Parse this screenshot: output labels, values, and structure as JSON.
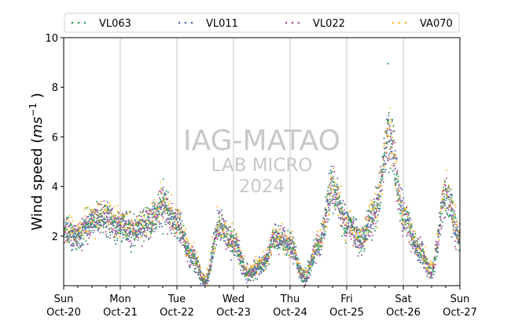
{
  "chart_data": {
    "type": "scatter",
    "ylabel": "Wind speed (ms⁻¹ )",
    "ylabel_main": "Wind speed (",
    "ylabel_unit": "ms",
    "ylabel_exp": "−1",
    "ylabel_close": " )",
    "ylim": [
      0,
      10
    ],
    "yticks": [
      2,
      4,
      6,
      8,
      10
    ],
    "x_range_days": [
      0,
      7
    ],
    "x_start": "2024-10-20",
    "x_end": "2024-10-27",
    "xticks": [
      {
        "day": "Sun",
        "date": "Oct-20"
      },
      {
        "day": "Mon",
        "date": "Oct-21"
      },
      {
        "day": "Tue",
        "date": "Oct-22"
      },
      {
        "day": "Wed",
        "date": "Oct-23"
      },
      {
        "day": "Thu",
        "date": "Oct-24"
      },
      {
        "day": "Fri",
        "date": "Oct-25"
      },
      {
        "day": "Sat",
        "date": "Oct-26"
      },
      {
        "day": "Sun",
        "date": "Oct-27"
      }
    ],
    "grid": "vertical at day boundaries",
    "legend_position": "top",
    "series": [
      {
        "name": "VL063",
        "color": "#2ca05a"
      },
      {
        "name": "VL011",
        "color": "#4a6fb5"
      },
      {
        "name": "VL022",
        "color": "#b0509a"
      },
      {
        "name": "VA070",
        "color": "#f5b92e"
      }
    ],
    "envelope": [
      [
        "2024-10-20 00:00",
        2.2
      ],
      [
        "2024-10-20 06:00",
        2.0
      ],
      [
        "2024-10-20 12:00",
        2.6
      ],
      [
        "2024-10-20 18:00",
        2.7
      ],
      [
        "2024-10-21 00:00",
        2.4
      ],
      [
        "2024-10-21 06:00",
        2.2
      ],
      [
        "2024-10-21 12:00",
        2.5
      ],
      [
        "2024-10-21 18:00",
        3.2
      ],
      [
        "2024-10-22 00:00",
        2.5
      ],
      [
        "2024-10-22 06:00",
        1.2
      ],
      [
        "2024-10-22 12:00",
        0.15
      ],
      [
        "2024-10-22 18:00",
        2.4
      ],
      [
        "2024-10-23 00:00",
        1.7
      ],
      [
        "2024-10-23 06:00",
        0.5
      ],
      [
        "2024-10-23 12:00",
        0.8
      ],
      [
        "2024-10-23 18:00",
        1.9
      ],
      [
        "2024-10-24 00:00",
        1.6
      ],
      [
        "2024-10-24 06:00",
        0.3
      ],
      [
        "2024-10-24 12:00",
        1.6
      ],
      [
        "2024-10-24 18:00",
        3.9
      ],
      [
        "2024-10-25 00:00",
        2.5
      ],
      [
        "2024-10-25 06:00",
        1.8
      ],
      [
        "2024-10-25 12:00",
        3.0
      ],
      [
        "2024-10-25 18:00",
        6.0
      ],
      [
        "2024-10-26 00:00",
        2.8
      ],
      [
        "2024-10-26 06:00",
        1.5
      ],
      [
        "2024-10-26 12:00",
        0.6
      ],
      [
        "2024-10-26 18:00",
        3.6
      ],
      [
        "2024-10-27 00:00",
        2.0
      ]
    ],
    "max_point": [
      "2024-10-25 17:30",
      8.95
    ]
  },
  "watermark": {
    "line1": "IAG-MATAO",
    "line2": "LAB MICRO",
    "line3": "2024"
  }
}
